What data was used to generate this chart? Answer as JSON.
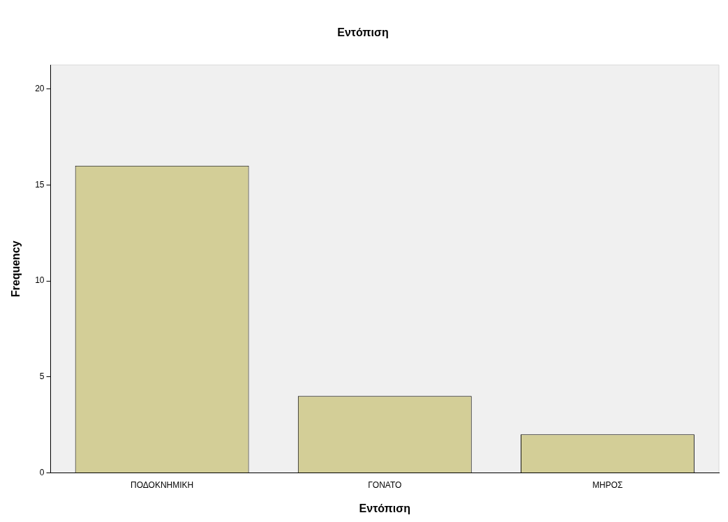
{
  "chart_data": {
    "type": "bar",
    "title": "Εντόπιση",
    "xlabel": "Εντόπιση",
    "ylabel": "Frequency",
    "categories": [
      "ΠΟΔΟΚΝΗΜΙΚΗ",
      "ΓΟΝΑΤΟ",
      "ΜΗΡΟΣ"
    ],
    "values": [
      16,
      4,
      2
    ],
    "color": "#d3ce97",
    "ylim": [
      0,
      21.25
    ],
    "yticks": [
      0,
      5,
      10,
      15,
      20
    ]
  }
}
